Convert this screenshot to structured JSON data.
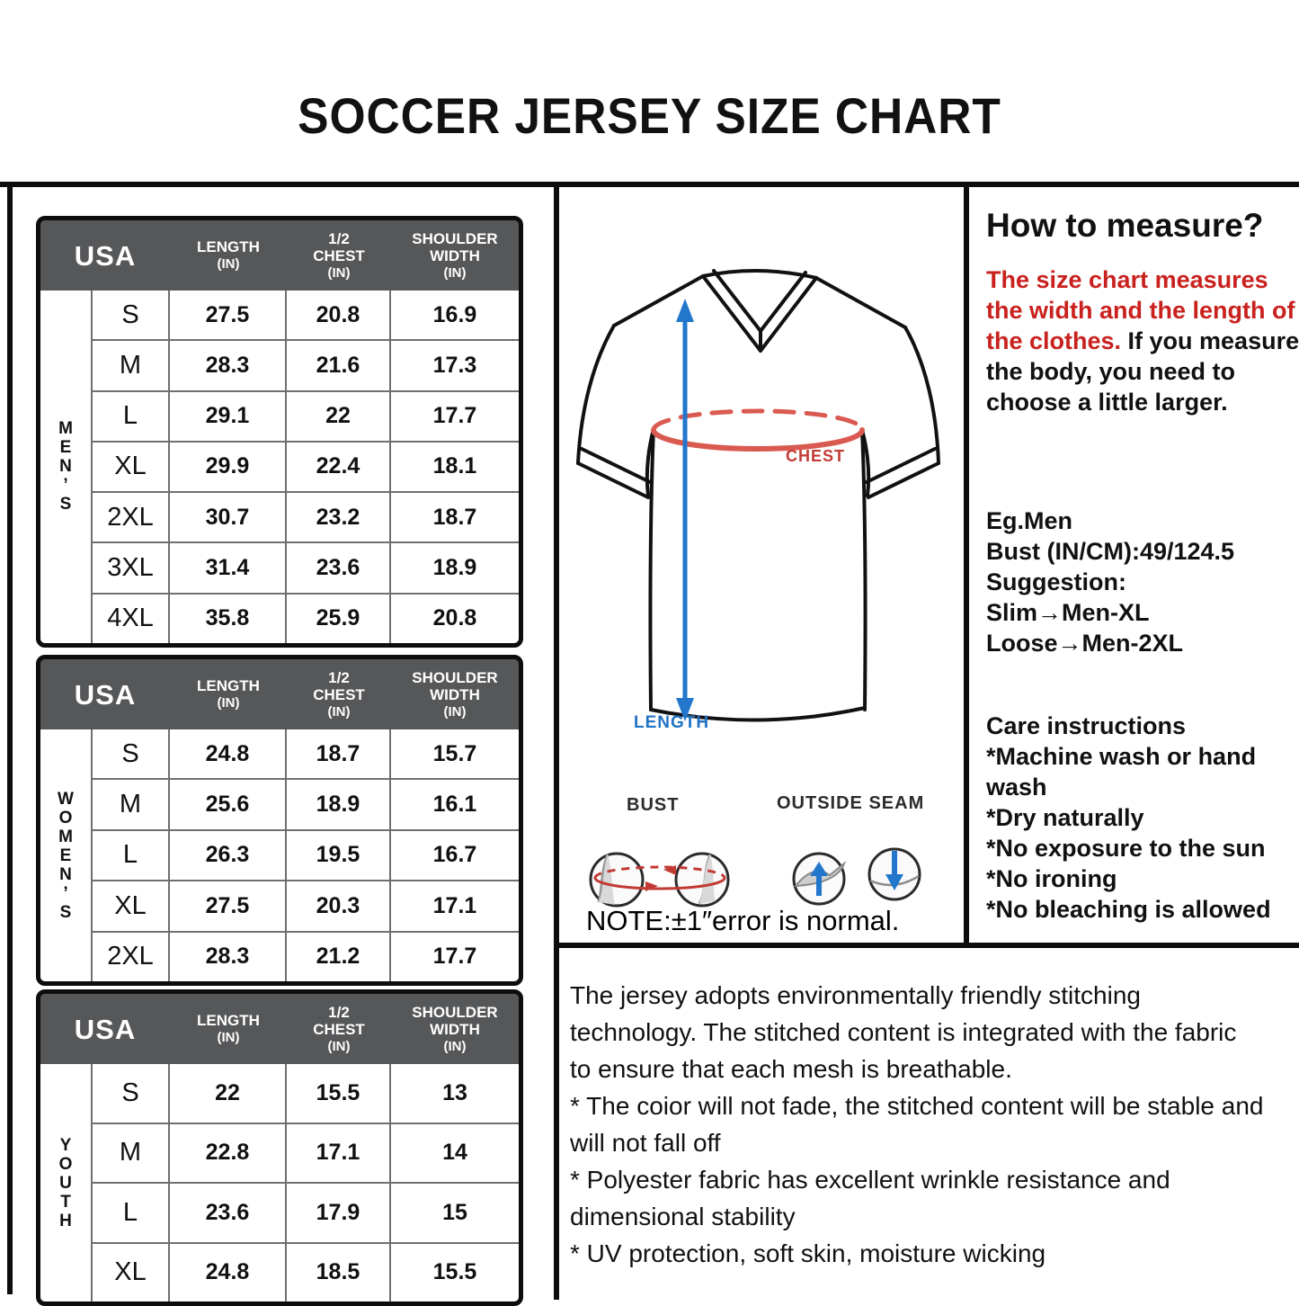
{
  "title": "SOCCER JERSEY SIZE CHART",
  "columns": [
    {
      "label_lines": [
        "USA"
      ]
    },
    {
      "label_lines": [
        "LENGTH",
        "(IN)"
      ]
    },
    {
      "label_lines": [
        "1/2",
        "CHEST",
        "(IN)"
      ]
    },
    {
      "label_lines": [
        "SHOULDER",
        "WIDTH",
        "(IN)"
      ]
    }
  ],
  "size_tables": [
    {
      "group": "MEN’S",
      "rows": [
        [
          "S",
          "27.5",
          "20.8",
          "16.9"
        ],
        [
          "M",
          "28.3",
          "21.6",
          "17.3"
        ],
        [
          "L",
          "29.1",
          "22",
          "17.7"
        ],
        [
          "XL",
          "29.9",
          "22.4",
          "18.1"
        ],
        [
          "2XL",
          "30.7",
          "23.2",
          "18.7"
        ],
        [
          "3XL",
          "31.4",
          "23.6",
          "18.9"
        ],
        [
          "4XL",
          "35.8",
          "25.9",
          "20.8"
        ]
      ]
    },
    {
      "group": "WOMEN’S",
      "rows": [
        [
          "S",
          "24.8",
          "18.7",
          "15.7"
        ],
        [
          "M",
          "25.6",
          "18.9",
          "16.1"
        ],
        [
          "L",
          "26.3",
          "19.5",
          "16.7"
        ],
        [
          "XL",
          "27.5",
          "20.3",
          "17.1"
        ],
        [
          "2XL",
          "28.3",
          "21.2",
          "17.7"
        ]
      ]
    },
    {
      "group": "YOUTH",
      "rows": [
        [
          "S",
          "22",
          "15.5",
          "13"
        ],
        [
          "M",
          "22.8",
          "17.1",
          "14"
        ],
        [
          "L",
          "23.6",
          "17.9",
          "15"
        ],
        [
          "XL",
          "24.8",
          "18.5",
          "15.5"
        ]
      ]
    }
  ],
  "diagram": {
    "chest_label": "CHEST",
    "length_label": "LENGTH",
    "bust_label": "BUST",
    "outside_seam_label": "OUTSIDE SEAM",
    "note": "NOTE:±1″error is normal."
  },
  "measure_panel": {
    "heading": "How to measure?",
    "red_text": "The size chart measures the width and the length of the clothes.",
    "black_text": " If you measure the body, you need to choose a little larger.",
    "example_lines": [
      "Eg.Men",
      "Bust (IN/CM):49/124.5",
      "Suggestion:",
      "Slim→Men-XL",
      "Loose→Men-2XL"
    ],
    "care_heading": "Care instructions",
    "care_lines": [
      "*Machine wash or hand wash",
      "*Dry naturally",
      "*No exposure to the sun",
      "*No ironing",
      "*No bleaching is allowed"
    ]
  },
  "bottom_panel": {
    "lines": [
      "The jersey adopts environmentally friendly stitching",
      "technology. The stitched content is integrated with the fabric",
      "to ensure that each mesh is breathable.",
      "* The coior will not fade, the stitched content will be stable and",
      "will not fall off",
      "* Polyester fabric has excellent wrinkle resistance and",
      "dimensional stability",
      "* UV protection, soft skin, moisture wicking"
    ]
  },
  "colors": {
    "accent_red": "#c9211e",
    "chest_line_red": "#d95a50",
    "accent_blue": "#2277cd",
    "header_gray": "#565759",
    "grid_gray": "#6f6f6f"
  }
}
